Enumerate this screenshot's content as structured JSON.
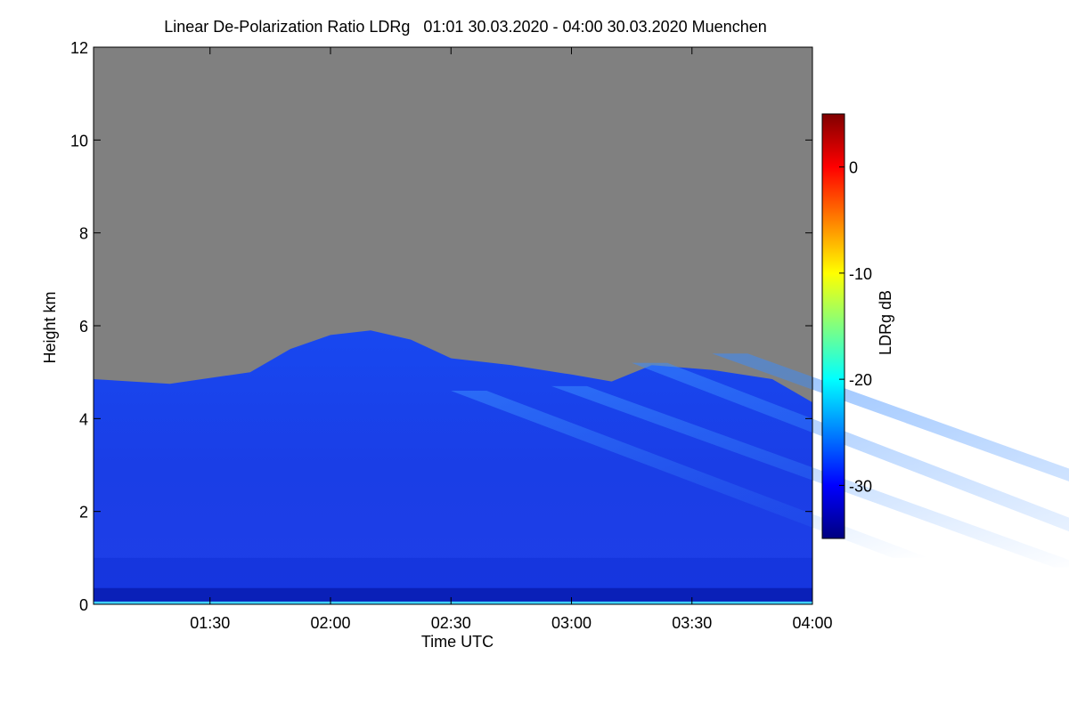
{
  "chart_data": {
    "type": "heatmap",
    "title": "Linear De-Polarization Ratio LDRg   01:01 30.03.2020 - 04:00 30.03.2020 Muenchen",
    "xlabel": "Time UTC",
    "ylabel": "Height km",
    "x_range": [
      "01:01",
      "04:00"
    ],
    "x_ticks": [
      "01:30",
      "02:00",
      "02:30",
      "03:00",
      "03:30",
      "04:00"
    ],
    "x_tick_minutes": [
      90,
      120,
      150,
      180,
      210,
      240
    ],
    "ylim": [
      0,
      12
    ],
    "y_ticks": [
      0,
      2,
      4,
      6,
      8,
      10,
      12
    ],
    "no_signal_color": "#808080",
    "colorbar": {
      "label": "LDRg dB",
      "range": [
        -35,
        5
      ],
      "ticks": [
        0,
        -10,
        -20,
        -30
      ],
      "colormap": [
        "#000080",
        "#0000ff",
        "#0080ff",
        "#00ffff",
        "#80ff80",
        "#ffff00",
        "#ff8000",
        "#ff0000",
        "#800000"
      ]
    },
    "cloud_top_km": [
      {
        "time": "01:01",
        "top": 4.85
      },
      {
        "time": "01:20",
        "top": 4.75
      },
      {
        "time": "01:40",
        "top": 5.0
      },
      {
        "time": "01:50",
        "top": 5.5
      },
      {
        "time": "02:00",
        "top": 5.8
      },
      {
        "time": "02:10",
        "top": 5.9
      },
      {
        "time": "02:20",
        "top": 5.7
      },
      {
        "time": "02:30",
        "top": 5.3
      },
      {
        "time": "02:45",
        "top": 5.15
      },
      {
        "time": "03:00",
        "top": 4.95
      },
      {
        "time": "03:10",
        "top": 4.8
      },
      {
        "time": "03:20",
        "top": 5.15
      },
      {
        "time": "03:35",
        "top": 5.05
      },
      {
        "time": "03:50",
        "top": 4.85
      },
      {
        "time": "04:00",
        "top": 4.35
      }
    ]
  }
}
